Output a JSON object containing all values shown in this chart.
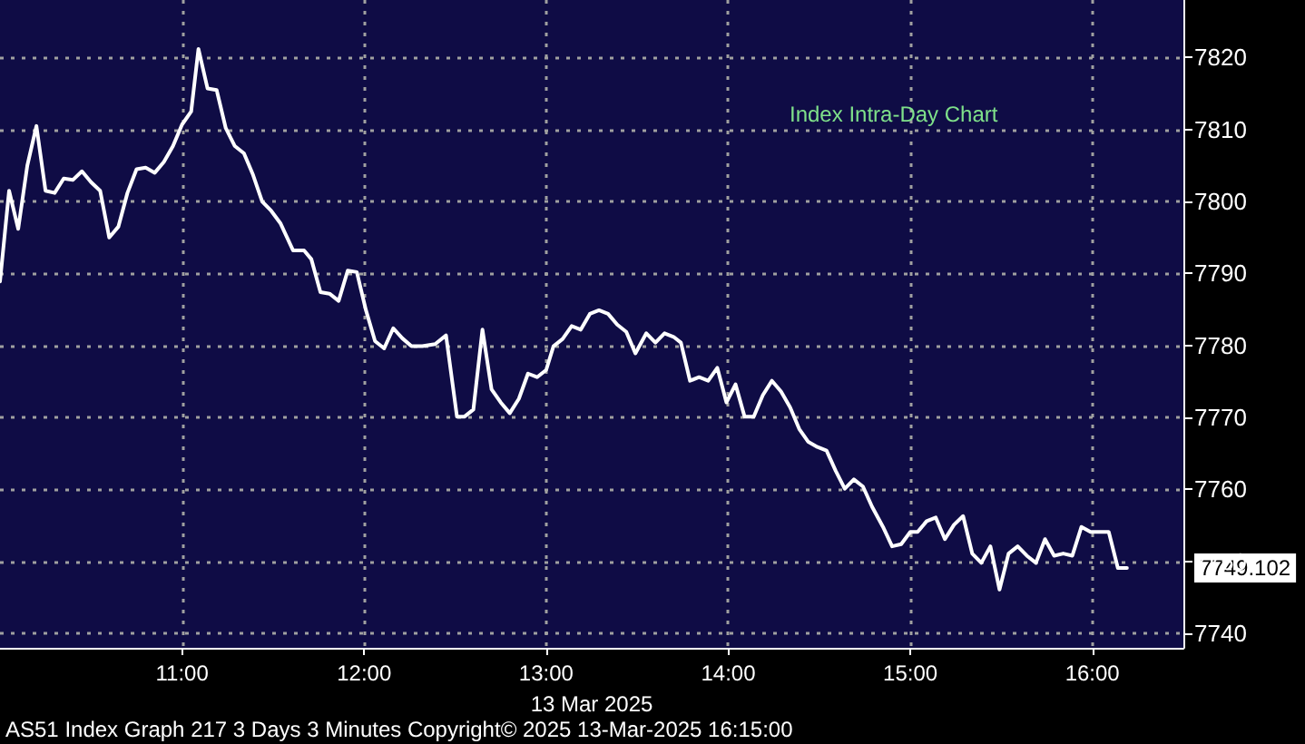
{
  "chart_data": {
    "type": "line",
    "title": "Index Intra-Day Chart",
    "xlabel": "13 Mar 2025",
    "xlim": [
      10,
      16.5
    ],
    "xticks": [
      {
        "value": 11,
        "label": "11:00"
      },
      {
        "value": 12,
        "label": "12:00"
      },
      {
        "value": 13,
        "label": "13:00"
      },
      {
        "value": 14,
        "label": "14:00"
      },
      {
        "value": 15,
        "label": "15:00"
      },
      {
        "value": 16,
        "label": "16:00"
      }
    ],
    "ylim": [
      7738,
      7828
    ],
    "yticks": [
      7740,
      7750,
      7760,
      7770,
      7780,
      7790,
      7800,
      7810,
      7820
    ],
    "grid": true,
    "series": [
      {
        "color": "#ffffff",
        "x": [
          10.0,
          10.05,
          10.1,
          10.15,
          10.2,
          10.25,
          10.3,
          10.35,
          10.4,
          10.45,
          10.5,
          10.55,
          10.6,
          10.65,
          10.7,
          10.75,
          10.8,
          10.85,
          10.9,
          10.95,
          11.0,
          11.05,
          11.09,
          11.14,
          11.19,
          11.24,
          11.29,
          11.34,
          11.39,
          11.44,
          11.49,
          11.54,
          11.61,
          11.67,
          11.71,
          11.76,
          11.81,
          11.86,
          11.91,
          11.96,
          12.01,
          12.06,
          12.11,
          12.16,
          12.21,
          12.26,
          12.32,
          12.39,
          12.45,
          12.51,
          12.55,
          12.6,
          12.65,
          12.7,
          12.75,
          12.8,
          12.85,
          12.9,
          12.95,
          13.0,
          13.04,
          13.09,
          13.14,
          13.19,
          13.24,
          13.29,
          13.34,
          13.39,
          13.44,
          13.49,
          13.55,
          13.6,
          13.65,
          13.7,
          13.74,
          13.79,
          13.84,
          13.89,
          13.94,
          13.99,
          14.04,
          14.09,
          14.14,
          14.19,
          14.24,
          14.29,
          14.34,
          14.39,
          14.44,
          14.49,
          14.54,
          14.59,
          14.64,
          14.69,
          14.74,
          14.79,
          14.85,
          14.9,
          14.95,
          15.0,
          15.04,
          15.09,
          15.14,
          15.19,
          15.24,
          15.29,
          15.34,
          15.39,
          15.44,
          15.49,
          15.54,
          15.59,
          15.64,
          15.69,
          15.74,
          15.79,
          15.84,
          15.89,
          15.94,
          15.99,
          16.04,
          16.09,
          16.14,
          16.19
        ],
        "values": [
          7788.9,
          7801.5,
          7796.2,
          7805,
          7810.5,
          7801.5,
          7801.2,
          7803.2,
          7803,
          7804.2,
          7802.7,
          7801.5,
          7795,
          7796.5,
          7801.2,
          7804.5,
          7804.7,
          7804,
          7805.5,
          7807.7,
          7810.7,
          7812.5,
          7821.2,
          7815.7,
          7815.5,
          7810.2,
          7807.7,
          7806.7,
          7803.7,
          7800,
          7798.7,
          7797,
          7793.2,
          7793.2,
          7792,
          7787.4,
          7787.2,
          7786.2,
          7790.4,
          7790.2,
          7784.9,
          7780.6,
          7779.6,
          7782.4,
          7781,
          7779.9,
          7779.9,
          7780.2,
          7781.4,
          7770.1,
          7770.1,
          7771.1,
          7782.2,
          7773.9,
          7772.1,
          7770.6,
          7772.6,
          7776.1,
          7775.6,
          7776.6,
          7779.9,
          7780.9,
          7782.7,
          7782.2,
          7784.4,
          7784.9,
          7784.4,
          7782.9,
          7781.9,
          7778.9,
          7781.7,
          7780.4,
          7781.7,
          7781.2,
          7780.4,
          7775.1,
          7775.6,
          7775.1,
          7776.9,
          7772.1,
          7774.6,
          7770.1,
          7770.1,
          7773.1,
          7775.1,
          7773.6,
          7771.4,
          7768.4,
          7766.6,
          7765.9,
          7765.4,
          7762.6,
          7760.1,
          7761.4,
          7760.4,
          7757.6,
          7754.8,
          7752.1,
          7752.4,
          7754.1,
          7754.1,
          7755.6,
          7756.1,
          7753.1,
          7755.1,
          7756.3,
          7751.1,
          7749.8,
          7752.1,
          7746.1,
          7751.1,
          7752.1,
          7750.8,
          7749.8,
          7753.1,
          7750.8,
          7751.1,
          7750.8,
          7754.8,
          7754.1,
          7754.1,
          7754.1,
          7749.1,
          7749.1
        ]
      }
    ],
    "annotations": [
      "7749.102",
      "AS51 Index Graph 217 3 Days 3 Minutes Copyright© 2025 13-Mar-2025 16:15:00"
    ]
  }
}
